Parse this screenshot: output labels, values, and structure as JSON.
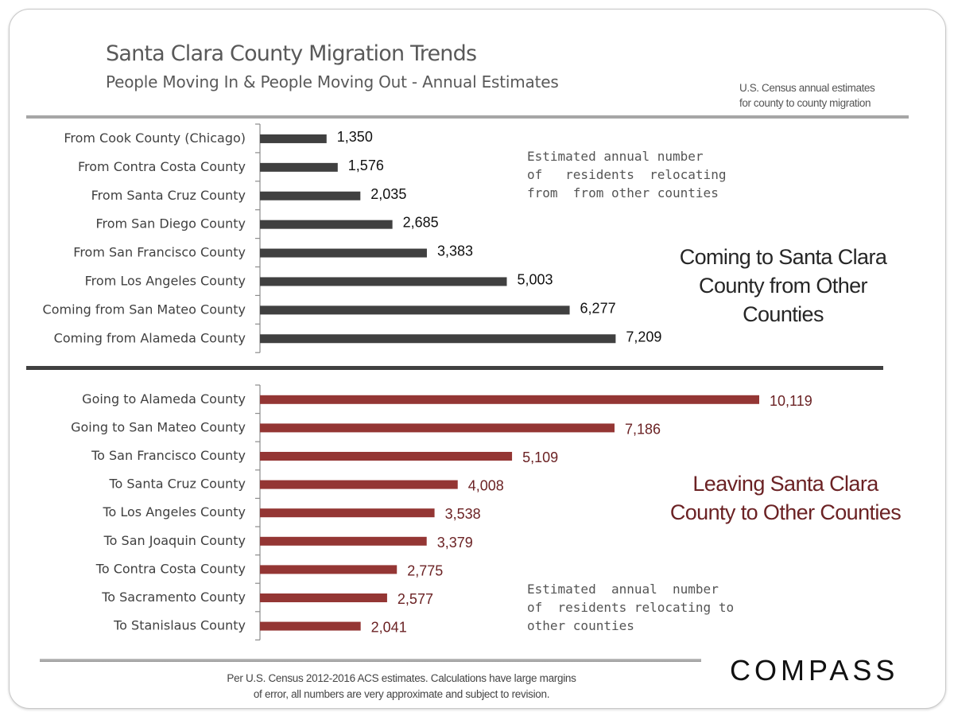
{
  "header": {
    "title": "Santa Clara County Migration Trends",
    "subtitle": "People Moving In & People Moving Out - Annual Estimates",
    "source_note_line1": "U.S. Census annual estimates",
    "source_note_line2": "for county to county migration"
  },
  "annotations": {
    "incoming_note": "Estimated annual number\nof   residents  relocating\nfrom  from other counties",
    "outgoing_note": "Estimated  annual  number\nof  residents relocating to\nother counties",
    "incoming_heading": "Coming to Santa Clara County from Other Counties",
    "outgoing_heading": "Leaving Santa Clara County to Other Counties"
  },
  "footer": {
    "footnote_line1": "Per U.S. Census 2012-2016 ACS estimates. Calculations have large margins",
    "footnote_line2": "of error, all numbers are very approximate and subject to revision.",
    "logo": "COMPASS"
  },
  "colors": {
    "incoming_bar": "#404040",
    "outgoing_bar": "#943634",
    "outgoing_text": "#6b2224"
  },
  "chart_data": [
    {
      "type": "bar",
      "orientation": "horizontal",
      "title": "Coming to Santa Clara County from Other Counties",
      "xlabel": "",
      "ylabel": "",
      "xlim": [
        0,
        10119
      ],
      "grid": false,
      "categories": [
        "From Cook County (Chicago)",
        "From Contra Costa County",
        "From Santa Cruz County",
        "From San Diego County",
        "From San Francisco County",
        "From Los Angeles County",
        "Coming from San Mateo County",
        "Coming from Alameda County"
      ],
      "values": [
        1350,
        1576,
        2035,
        2685,
        3383,
        5003,
        6277,
        7209
      ],
      "value_labels": [
        "1,350",
        "1,576",
        "2,035",
        "2,685",
        "3,383",
        "5,003",
        "6,277",
        "7,209"
      ]
    },
    {
      "type": "bar",
      "orientation": "horizontal",
      "title": "Leaving Santa Clara County to Other Counties",
      "xlabel": "",
      "ylabel": "",
      "xlim": [
        0,
        10119
      ],
      "grid": false,
      "categories": [
        "Going to Alameda County",
        "Going to San Mateo County",
        "To San Francisco County",
        "To Santa Cruz County",
        "To Los Angeles County",
        "To San Joaquin County",
        "To Contra Costa County",
        "To Sacramento County",
        "To Stanislaus County"
      ],
      "values": [
        10119,
        7186,
        5109,
        4008,
        3538,
        3379,
        2775,
        2577,
        2041
      ],
      "value_labels": [
        "10,119",
        "7,186",
        "5,109",
        "4,008",
        "3,538",
        "3,379",
        "2,775",
        "2,577",
        "2,041"
      ]
    }
  ]
}
